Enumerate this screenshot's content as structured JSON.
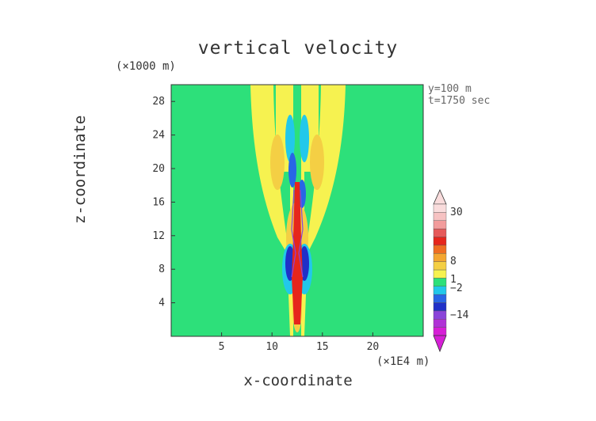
{
  "chart_data": {
    "type": "heatmap",
    "title": "vertical velocity",
    "xlabel": "x-coordinate",
    "ylabel": "z-coordinate",
    "x_unit": "(×1E4 m)",
    "y_unit": "(×1000 m)",
    "annotations": [
      "y=100 m",
      "t=1750 sec"
    ],
    "xlim": [
      0,
      25
    ],
    "ylim": [
      0,
      30
    ],
    "xticks": [
      5,
      10,
      15,
      20
    ],
    "yticks": [
      4,
      8,
      12,
      16,
      20,
      24,
      28
    ],
    "background_level": 0,
    "colorbar": {
      "labels": [
        {
          "value": 30,
          "text": "30"
        },
        {
          "value": 8,
          "text": "8"
        },
        {
          "value": 1,
          "text": "1"
        },
        {
          "value": -2,
          "text": "−2"
        },
        {
          "value": -14,
          "text": "−14"
        }
      ],
      "colors": [
        "#d61fd6",
        "#b033d6",
        "#8a44d9",
        "#2030c8",
        "#2866e6",
        "#22c8ea",
        "#2de07a",
        "#f6f250",
        "#f4cf44",
        "#f4a630",
        "#ef6e22",
        "#e6261c",
        "#e65a5a",
        "#f29c9c",
        "#f6c2c2",
        "#f9dcdc"
      ]
    },
    "regions": [
      {
        "level": "weak positive (yellow)",
        "x": [
          8,
          17
        ],
        "z": [
          0,
          30
        ]
      },
      {
        "level": "moderate positive (orange)",
        "x": [
          9.5,
          15
        ],
        "z": [
          5,
          23
        ]
      },
      {
        "level": "weak negative (cyan)",
        "x": [
          11,
          14
        ],
        "z": [
          6,
          25
        ]
      },
      {
        "level": "strong negative (blue)",
        "x": [
          11,
          14
        ],
        "z": [
          6,
          19
        ]
      },
      {
        "level": "strong positive core (red)",
        "x": [
          12,
          13
        ],
        "z": [
          1,
          17
        ]
      }
    ]
  }
}
